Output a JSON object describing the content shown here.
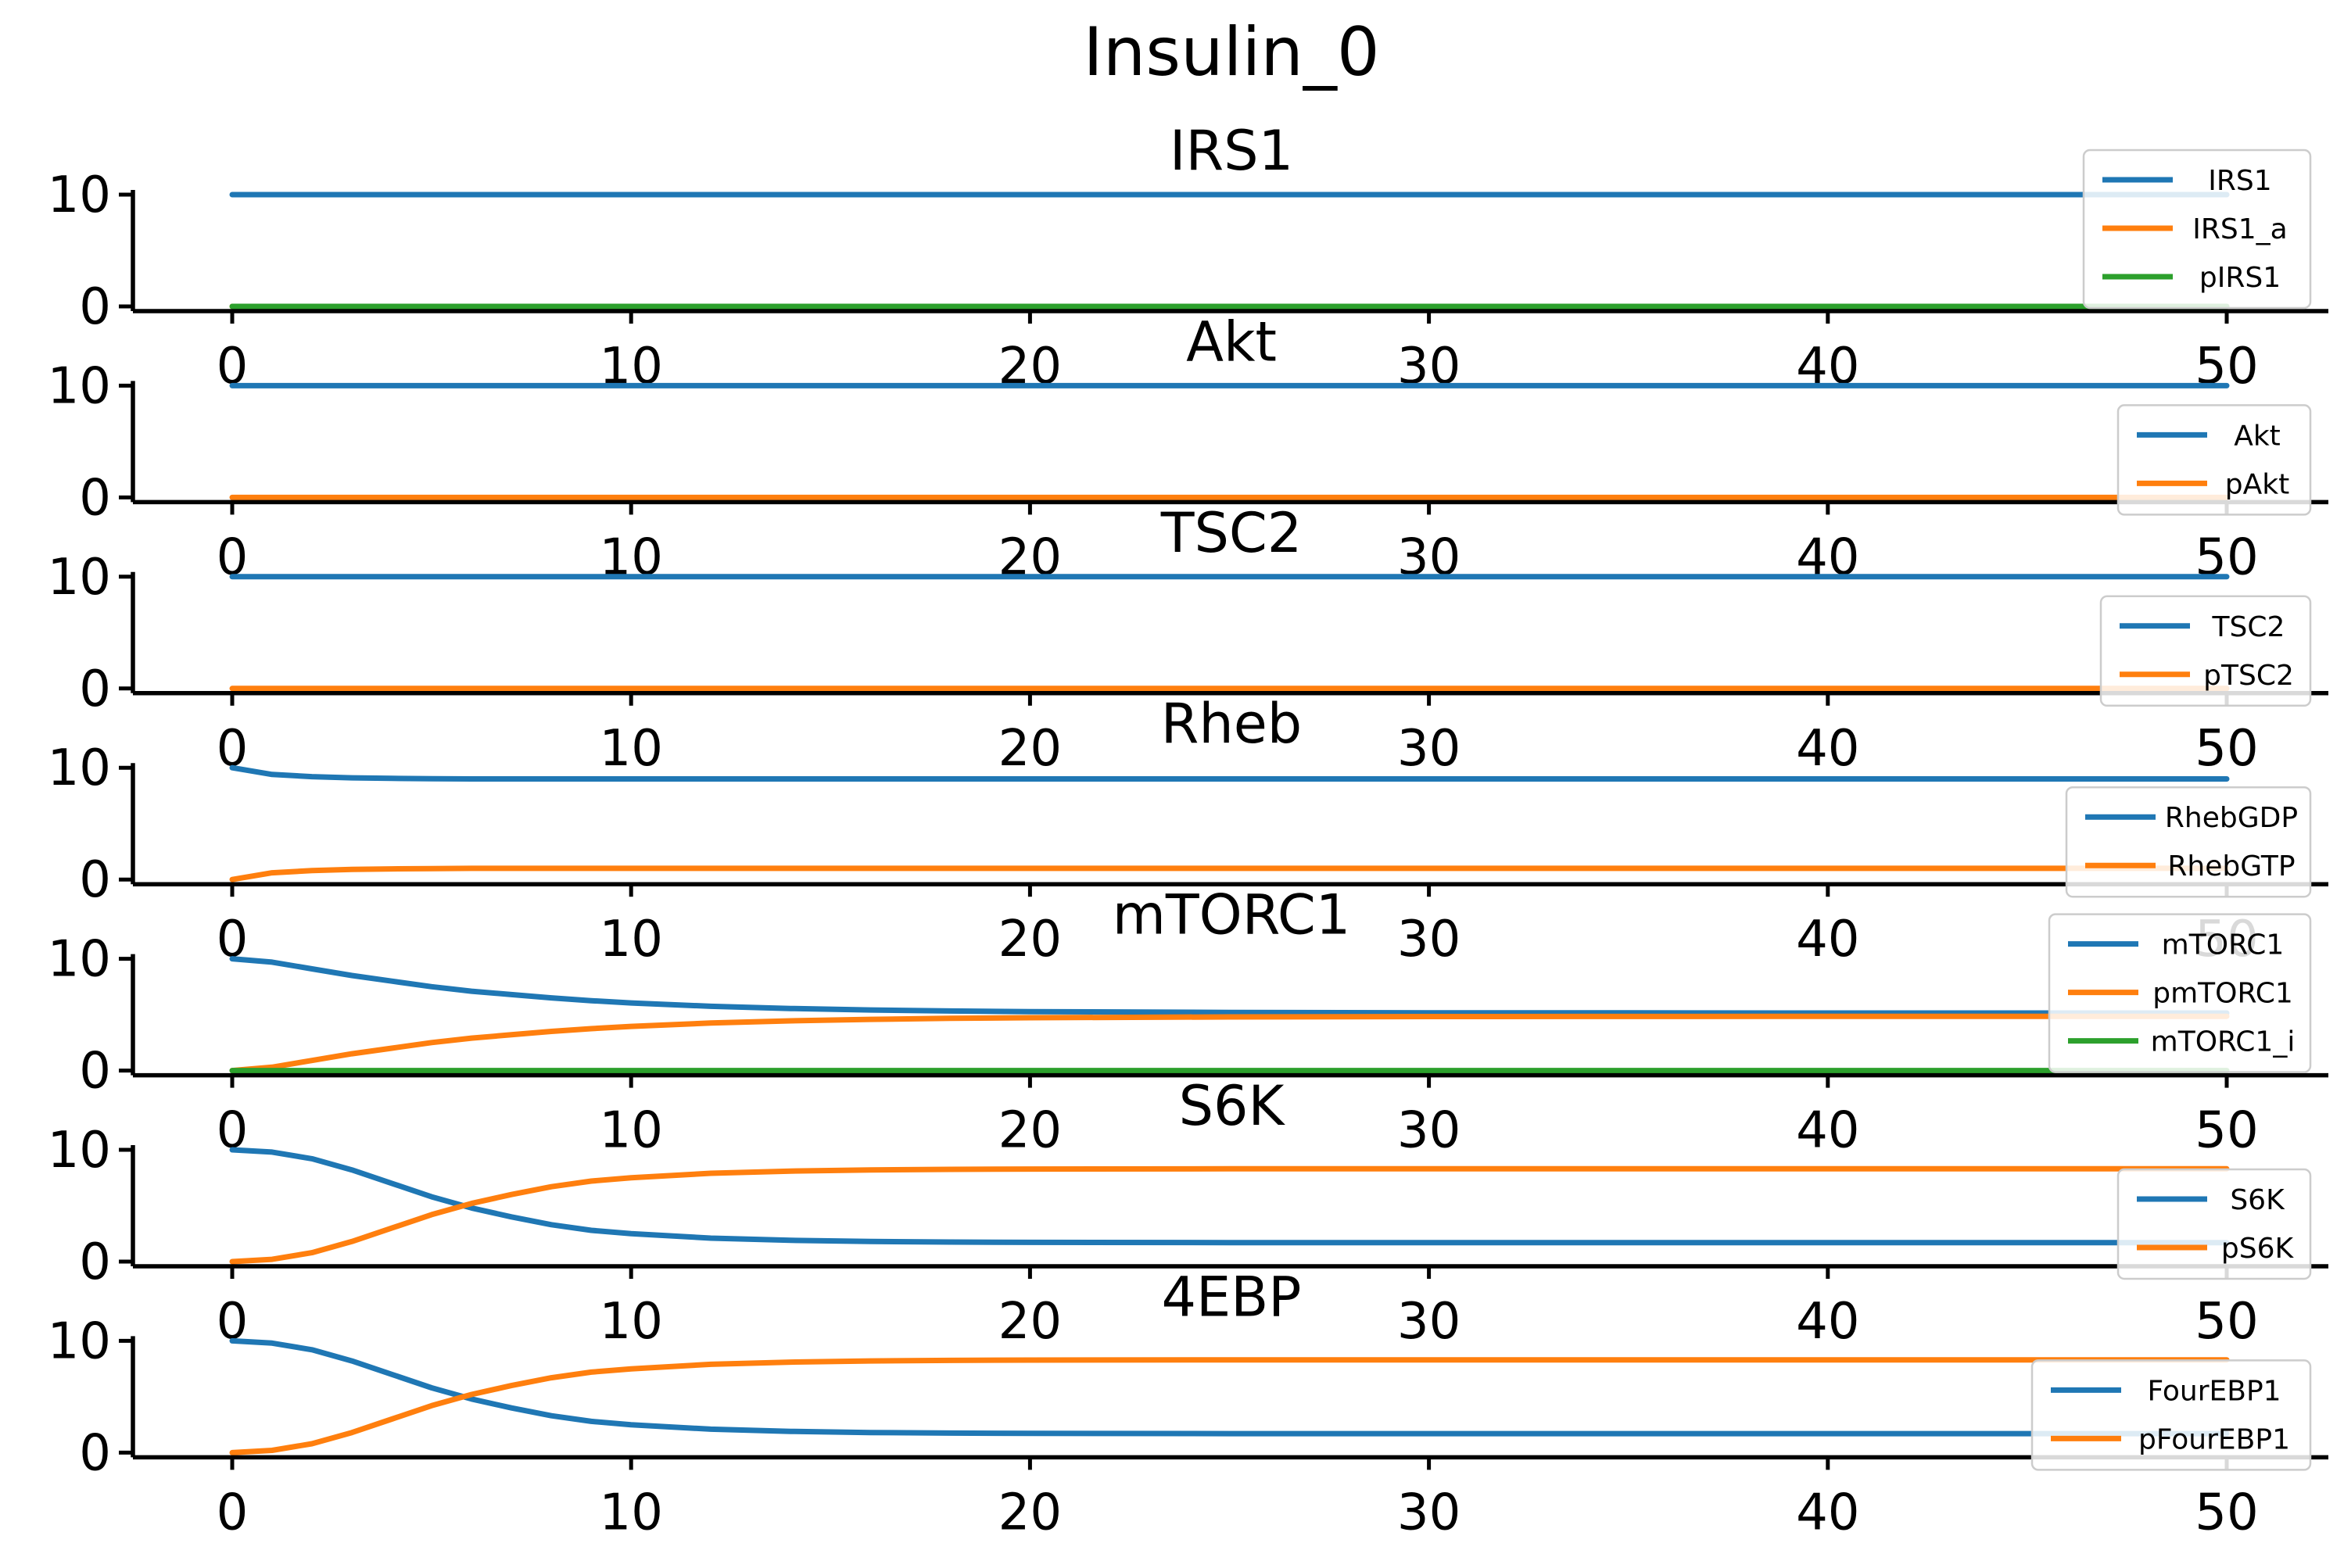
{
  "title": "Insulin_0",
  "colors": {
    "blue": "#1f77b4",
    "orange": "#ff7f0e",
    "green": "#2ca02c"
  },
  "chart_data": [
    {
      "type": "line",
      "title": "IRS1",
      "x": [
        0,
        1,
        2,
        3,
        4,
        5,
        6,
        7,
        8,
        9,
        10,
        12,
        14,
        16,
        18,
        20,
        25,
        30,
        35,
        40,
        45,
        50
      ],
      "xlim": [
        0,
        50
      ],
      "ylim": [
        0,
        10
      ],
      "xticks": [
        "0",
        "10",
        "20",
        "30",
        "40",
        "50"
      ],
      "yticks": [
        "0",
        "10"
      ],
      "legend_loc": "lower right",
      "grid": false,
      "series": [
        {
          "name": "IRS1",
          "color": "#1f77b4",
          "values": [
            10,
            10,
            10,
            10,
            10,
            10,
            10,
            10,
            10,
            10,
            10,
            10,
            10,
            10,
            10,
            10,
            10,
            10,
            10,
            10,
            10,
            10
          ]
        },
        {
          "name": "IRS1_a",
          "color": "#ff7f0e",
          "values": [
            0,
            0,
            0,
            0,
            0,
            0,
            0,
            0,
            0,
            0,
            0,
            0,
            0,
            0,
            0,
            0,
            0,
            0,
            0,
            0,
            0,
            0
          ]
        },
        {
          "name": "pIRS1",
          "color": "#2ca02c",
          "values": [
            0,
            0,
            0,
            0,
            0,
            0,
            0,
            0,
            0,
            0,
            0,
            0,
            0,
            0,
            0,
            0,
            0,
            0,
            0,
            0,
            0,
            0
          ]
        }
      ]
    },
    {
      "type": "line",
      "title": "Akt",
      "x": [
        0,
        1,
        2,
        3,
        4,
        5,
        6,
        7,
        8,
        9,
        10,
        12,
        14,
        16,
        18,
        20,
        25,
        30,
        35,
        40,
        45,
        50
      ],
      "xlim": [
        0,
        50
      ],
      "ylim": [
        0,
        10
      ],
      "xticks": [
        "0",
        "10",
        "20",
        "30",
        "40",
        "50"
      ],
      "yticks": [
        "0",
        "10"
      ],
      "legend_loc": "lower right",
      "grid": false,
      "series": [
        {
          "name": "Akt",
          "color": "#1f77b4",
          "values": [
            10,
            10,
            10,
            10,
            10,
            10,
            10,
            10,
            10,
            10,
            10,
            10,
            10,
            10,
            10,
            10,
            10,
            10,
            10,
            10,
            10,
            10
          ]
        },
        {
          "name": "pAkt",
          "color": "#ff7f0e",
          "values": [
            0,
            0,
            0,
            0,
            0,
            0,
            0,
            0,
            0,
            0,
            0,
            0,
            0,
            0,
            0,
            0,
            0,
            0,
            0,
            0,
            0,
            0
          ]
        }
      ]
    },
    {
      "type": "line",
      "title": "TSC2",
      "x": [
        0,
        1,
        2,
        3,
        4,
        5,
        6,
        7,
        8,
        9,
        10,
        12,
        14,
        16,
        18,
        20,
        25,
        30,
        35,
        40,
        45,
        50
      ],
      "xlim": [
        0,
        50
      ],
      "ylim": [
        0,
        10
      ],
      "xticks": [
        "0",
        "10",
        "20",
        "30",
        "40",
        "50"
      ],
      "yticks": [
        "0",
        "10"
      ],
      "legend_loc": "lower right",
      "grid": false,
      "series": [
        {
          "name": "TSC2",
          "color": "#1f77b4",
          "values": [
            10,
            10,
            10,
            10,
            10,
            10,
            10,
            10,
            10,
            10,
            10,
            10,
            10,
            10,
            10,
            10,
            10,
            10,
            10,
            10,
            10,
            10
          ]
        },
        {
          "name": "pTSC2",
          "color": "#ff7f0e",
          "values": [
            0,
            0,
            0,
            0,
            0,
            0,
            0,
            0,
            0,
            0,
            0,
            0,
            0,
            0,
            0,
            0,
            0,
            0,
            0,
            0,
            0,
            0
          ]
        }
      ]
    },
    {
      "type": "line",
      "title": "Rheb",
      "x": [
        0,
        1,
        2,
        3,
        4,
        5,
        6,
        7,
        8,
        9,
        10,
        12,
        14,
        16,
        18,
        20,
        25,
        30,
        35,
        40,
        45,
        50
      ],
      "xlim": [
        0,
        50
      ],
      "ylim": [
        0,
        10
      ],
      "xticks": [
        "0",
        "10",
        "20",
        "30",
        "40",
        "50"
      ],
      "yticks": [
        "0",
        "10"
      ],
      "legend_loc": "lower right",
      "grid": false,
      "series": [
        {
          "name": "RhebGDP",
          "color": "#1f77b4",
          "values": [
            10,
            9.4,
            9.2,
            9.1,
            9.05,
            9.02,
            9.0,
            9.0,
            9.0,
            9.0,
            9.0,
            9.0,
            9.0,
            9.0,
            9.0,
            9.0,
            9.0,
            9.0,
            9.0,
            9.0,
            9.0,
            9.0
          ]
        },
        {
          "name": "RhebGTP",
          "color": "#ff7f0e",
          "values": [
            0,
            0.6,
            0.8,
            0.9,
            0.95,
            0.98,
            1.0,
            1.0,
            1.0,
            1.0,
            1.0,
            1.0,
            1.0,
            1.0,
            1.0,
            1.0,
            1.0,
            1.0,
            1.0,
            1.0,
            1.0,
            1.0
          ]
        }
      ]
    },
    {
      "type": "line",
      "title": "mTORC1",
      "x": [
        0,
        1,
        2,
        3,
        4,
        5,
        6,
        7,
        8,
        9,
        10,
        12,
        14,
        16,
        18,
        20,
        25,
        30,
        35,
        40,
        45,
        50
      ],
      "xlim": [
        0,
        50
      ],
      "ylim": [
        0,
        10
      ],
      "xticks": [
        "0",
        "10",
        "20",
        "30",
        "40",
        "50"
      ],
      "yticks": [
        "0",
        "10"
      ],
      "legend_loc": "lower right",
      "grid": false,
      "series": [
        {
          "name": "mTORC1",
          "color": "#1f77b4",
          "values": [
            10,
            9.7,
            9.1,
            8.5,
            8.0,
            7.5,
            7.1,
            6.8,
            6.5,
            6.25,
            6.05,
            5.75,
            5.55,
            5.42,
            5.33,
            5.27,
            5.2,
            5.17,
            5.16,
            5.15,
            5.15,
            5.15
          ]
        },
        {
          "name": "pmTORC1",
          "color": "#ff7f0e",
          "values": [
            0,
            0.3,
            0.9,
            1.5,
            2.0,
            2.5,
            2.9,
            3.2,
            3.5,
            3.75,
            3.95,
            4.25,
            4.45,
            4.58,
            4.67,
            4.73,
            4.8,
            4.83,
            4.84,
            4.85,
            4.85,
            4.85
          ]
        },
        {
          "name": "mTORC1_i",
          "color": "#2ca02c",
          "values": [
            0,
            0,
            0,
            0,
            0,
            0,
            0,
            0,
            0,
            0,
            0,
            0,
            0,
            0,
            0,
            0,
            0,
            0,
            0,
            0,
            0,
            0
          ]
        }
      ]
    },
    {
      "type": "line",
      "title": "S6K",
      "x": [
        0,
        1,
        2,
        3,
        4,
        5,
        6,
        7,
        8,
        9,
        10,
        12,
        14,
        16,
        18,
        20,
        25,
        30,
        35,
        40,
        45,
        50
      ],
      "xlim": [
        0,
        50
      ],
      "ylim": [
        0,
        10
      ],
      "xticks": [
        "0",
        "10",
        "20",
        "30",
        "40",
        "50"
      ],
      "yticks": [
        "0",
        "10"
      ],
      "legend_loc": "lower right",
      "grid": false,
      "series": [
        {
          "name": "S6K",
          "color": "#1f77b4",
          "values": [
            10,
            9.8,
            9.2,
            8.2,
            7.0,
            5.8,
            4.8,
            4.0,
            3.3,
            2.8,
            2.5,
            2.1,
            1.9,
            1.8,
            1.75,
            1.72,
            1.7,
            1.7,
            1.7,
            1.7,
            1.7,
            1.7
          ]
        },
        {
          "name": "pS6K",
          "color": "#ff7f0e",
          "values": [
            0,
            0.2,
            0.8,
            1.8,
            3.0,
            4.2,
            5.2,
            6.0,
            6.7,
            7.2,
            7.5,
            7.9,
            8.1,
            8.2,
            8.25,
            8.28,
            8.3,
            8.3,
            8.3,
            8.3,
            8.3,
            8.3
          ]
        }
      ]
    },
    {
      "type": "line",
      "title": "4EBP",
      "x": [
        0,
        1,
        2,
        3,
        4,
        5,
        6,
        7,
        8,
        9,
        10,
        12,
        14,
        16,
        18,
        20,
        25,
        30,
        35,
        40,
        45,
        50
      ],
      "xlim": [
        0,
        50
      ],
      "ylim": [
        0,
        10
      ],
      "xticks": [
        "0",
        "10",
        "20",
        "30",
        "40",
        "50"
      ],
      "yticks": [
        "0",
        "10"
      ],
      "legend_loc": "lower right",
      "grid": false,
      "series": [
        {
          "name": "FourEBP1",
          "color": "#1f77b4",
          "values": [
            10,
            9.8,
            9.2,
            8.2,
            7.0,
            5.8,
            4.8,
            4.0,
            3.3,
            2.8,
            2.5,
            2.1,
            1.9,
            1.8,
            1.75,
            1.72,
            1.7,
            1.7,
            1.7,
            1.7,
            1.7,
            1.7
          ]
        },
        {
          "name": "pFourEBP1",
          "color": "#ff7f0e",
          "values": [
            0,
            0.2,
            0.8,
            1.8,
            3.0,
            4.2,
            5.2,
            6.0,
            6.7,
            7.2,
            7.5,
            7.9,
            8.1,
            8.2,
            8.25,
            8.28,
            8.3,
            8.3,
            8.3,
            8.3,
            8.3,
            8.3
          ]
        }
      ]
    }
  ]
}
